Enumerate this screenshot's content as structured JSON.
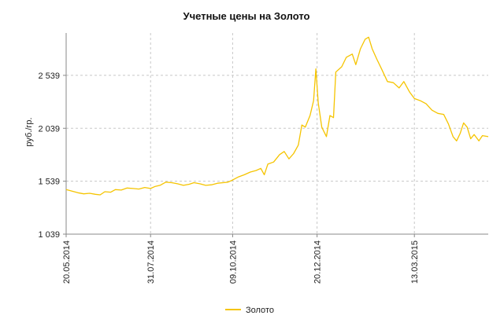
{
  "chart_data": {
    "type": "line",
    "title": "Учетные цены на Золото",
    "ylabel": "руб./гр.",
    "xlabel": "",
    "x_range": [
      "2014-05-20",
      "2015-05-15"
    ],
    "ylim": [
      1039,
      2939
    ],
    "y_ticks": [
      1039,
      1539,
      2039,
      2539
    ],
    "y_tick_labels": [
      "1 039",
      "1 539",
      "2 039",
      "2 539"
    ],
    "x_ticks": [
      "2014-05-20",
      "2014-07-31",
      "2014-10-09",
      "2014-12-20",
      "2015-03-13"
    ],
    "x_tick_labels": [
      "20.05.2014",
      "31.07.2014",
      "09.10.2014",
      "20.12.2014",
      "13.03.2015"
    ],
    "grid": true,
    "legend_position": "bottom-center",
    "series": [
      {
        "name": "Золото",
        "color": "#f5c400",
        "points": [
          [
            "2014-05-20",
            1460
          ],
          [
            "2014-05-25",
            1445
          ],
          [
            "2014-05-30",
            1430
          ],
          [
            "2014-06-04",
            1420
          ],
          [
            "2014-06-09",
            1425
          ],
          [
            "2014-06-14",
            1415
          ],
          [
            "2014-06-18",
            1410
          ],
          [
            "2014-06-22",
            1440
          ],
          [
            "2014-06-27",
            1435
          ],
          [
            "2014-07-01",
            1460
          ],
          [
            "2014-07-06",
            1455
          ],
          [
            "2014-07-11",
            1475
          ],
          [
            "2014-07-16",
            1470
          ],
          [
            "2014-07-21",
            1465
          ],
          [
            "2014-07-26",
            1480
          ],
          [
            "2014-07-31",
            1470
          ],
          [
            "2014-08-04",
            1490
          ],
          [
            "2014-08-08",
            1500
          ],
          [
            "2014-08-13",
            1530
          ],
          [
            "2014-08-18",
            1525
          ],
          [
            "2014-08-23",
            1515
          ],
          [
            "2014-08-28",
            1500
          ],
          [
            "2014-09-02",
            1510
          ],
          [
            "2014-09-06",
            1525
          ],
          [
            "2014-09-11",
            1515
          ],
          [
            "2014-09-16",
            1500
          ],
          [
            "2014-09-21",
            1505
          ],
          [
            "2014-09-26",
            1520
          ],
          [
            "2014-10-01",
            1525
          ],
          [
            "2014-10-05",
            1530
          ],
          [
            "2014-10-09",
            1550
          ],
          [
            "2014-10-14",
            1580
          ],
          [
            "2014-10-19",
            1600
          ],
          [
            "2014-10-24",
            1625
          ],
          [
            "2014-10-29",
            1640
          ],
          [
            "2014-11-02",
            1660
          ],
          [
            "2014-11-05",
            1600
          ],
          [
            "2014-11-08",
            1700
          ],
          [
            "2014-11-13",
            1720
          ],
          [
            "2014-11-18",
            1790
          ],
          [
            "2014-11-22",
            1820
          ],
          [
            "2014-11-26",
            1750
          ],
          [
            "2014-11-30",
            1800
          ],
          [
            "2014-12-04",
            1880
          ],
          [
            "2014-12-07",
            2070
          ],
          [
            "2014-12-10",
            2050
          ],
          [
            "2014-12-14",
            2160
          ],
          [
            "2014-12-17",
            2300
          ],
          [
            "2014-12-19",
            2600
          ],
          [
            "2014-12-21",
            2280
          ],
          [
            "2014-12-24",
            2050
          ],
          [
            "2014-12-28",
            1960
          ],
          [
            "2014-12-31",
            2160
          ],
          [
            "2015-01-03",
            2140
          ],
          [
            "2015-01-05",
            2570
          ],
          [
            "2015-01-10",
            2620
          ],
          [
            "2015-01-14",
            2710
          ],
          [
            "2015-01-19",
            2740
          ],
          [
            "2015-01-22",
            2640
          ],
          [
            "2015-01-26",
            2790
          ],
          [
            "2015-01-30",
            2880
          ],
          [
            "2015-02-02",
            2900
          ],
          [
            "2015-02-05",
            2790
          ],
          [
            "2015-02-09",
            2690
          ],
          [
            "2015-02-13",
            2600
          ],
          [
            "2015-02-18",
            2480
          ],
          [
            "2015-02-23",
            2470
          ],
          [
            "2015-02-28",
            2420
          ],
          [
            "2015-03-04",
            2480
          ],
          [
            "2015-03-09",
            2380
          ],
          [
            "2015-03-13",
            2320
          ],
          [
            "2015-03-18",
            2300
          ],
          [
            "2015-03-23",
            2270
          ],
          [
            "2015-03-28",
            2210
          ],
          [
            "2015-04-02",
            2180
          ],
          [
            "2015-04-07",
            2170
          ],
          [
            "2015-04-11",
            2080
          ],
          [
            "2015-04-15",
            1960
          ],
          [
            "2015-04-18",
            1920
          ],
          [
            "2015-04-21",
            1990
          ],
          [
            "2015-04-24",
            2090
          ],
          [
            "2015-04-27",
            2050
          ],
          [
            "2015-04-30",
            1940
          ],
          [
            "2015-05-03",
            1980
          ],
          [
            "2015-05-07",
            1920
          ],
          [
            "2015-05-10",
            1970
          ],
          [
            "2015-05-15",
            1960
          ]
        ]
      }
    ]
  }
}
